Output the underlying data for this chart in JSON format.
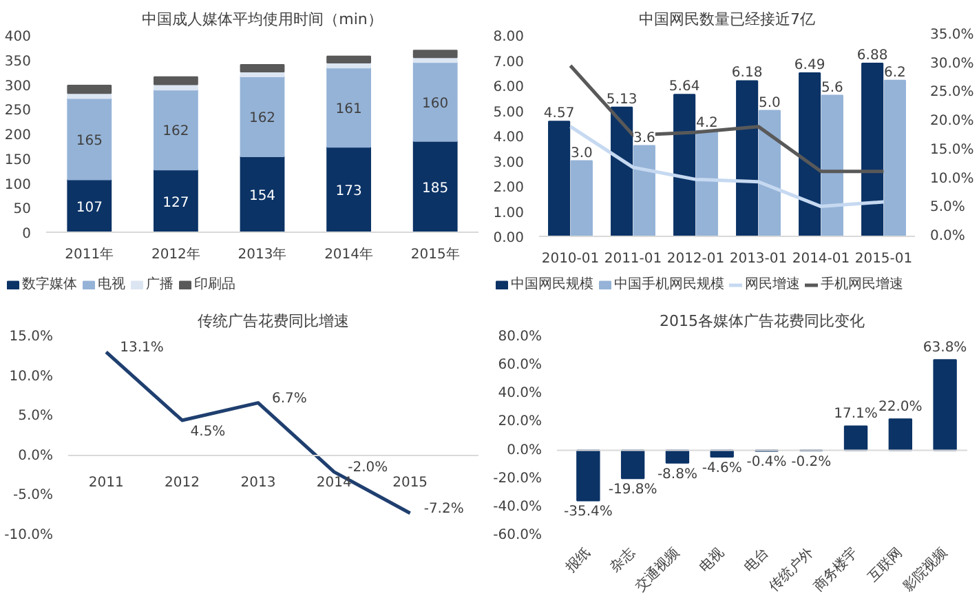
{
  "chart_data": [
    {
      "type": "bar",
      "title": "中国成人媒体平均使用时间（min）",
      "stacked": true,
      "categories": [
        "2011年",
        "2012年",
        "2013年",
        "2014年",
        "2015年"
      ],
      "series": [
        {
          "name": "数字媒体",
          "color": "#0b3366",
          "values": [
            107,
            127,
            154,
            173,
            185
          ],
          "value_labels": [
            "107",
            "127",
            "154",
            "173",
            "185"
          ]
        },
        {
          "name": "电视",
          "color": "#95b3d7",
          "values": [
            165,
            162,
            162,
            161,
            160
          ],
          "value_labels": [
            "165",
            "162",
            "162",
            "161",
            "160"
          ]
        },
        {
          "name": "广播",
          "color": "#dce6f2",
          "values": [
            10,
            11,
            10,
            10,
            10
          ]
        },
        {
          "name": "印刷品",
          "color": "#595959",
          "values": [
            16,
            15,
            14,
            13,
            14
          ]
        }
      ],
      "ylim": [
        0,
        400
      ],
      "yticks": [
        0,
        50,
        100,
        150,
        200,
        250,
        300,
        350,
        400
      ],
      "legend": "bottom"
    },
    {
      "type": "bar",
      "title": "中国网民数量已经接近7亿",
      "categories": [
        "2010-01",
        "2011-01",
        "2012-01",
        "2013-01",
        "2014-01",
        "2015-01"
      ],
      "series": [
        {
          "name": "中国网民规模",
          "color": "#0b3366",
          "values": [
            4.57,
            5.13,
            5.64,
            6.18,
            6.49,
            6.88
          ],
          "value_labels": [
            "4.57",
            "5.13",
            "5.64",
            "6.18",
            "6.49",
            "6.88"
          ]
        },
        {
          "name": "中国手机网民规模",
          "color": "#95b3d7",
          "values": [
            3.0,
            3.6,
            4.2,
            5.0,
            5.6,
            6.2
          ],
          "value_labels": [
            "3.0",
            "3.6",
            "4.2",
            "5.0",
            "5.6",
            "6.2"
          ]
        },
        {
          "name": "网民增速",
          "type": "line",
          "axis": "y2",
          "color": "#c6d9f1",
          "values": [
            19.1,
            12.0,
            9.9,
            9.5,
            5.2,
            6.0
          ]
        },
        {
          "name": "手机网民增速",
          "type": "line",
          "axis": "y2",
          "color": "#595959",
          "values": [
            29.7,
            17.6,
            18.1,
            19.1,
            11.3,
            11.3
          ]
        }
      ],
      "ylim": [
        0,
        8
      ],
      "yticks": [
        {
          "value": 0,
          "label": "0.00"
        },
        {
          "value": 1,
          "label": "1.00"
        },
        {
          "value": 2,
          "label": "2.00"
        },
        {
          "value": 3,
          "label": "3.00"
        },
        {
          "value": 4,
          "label": "4.00"
        },
        {
          "value": 5,
          "label": "5.00"
        },
        {
          "value": 6,
          "label": "6.00"
        },
        {
          "value": 7,
          "label": "7.00"
        },
        {
          "value": 8,
          "label": "8.00"
        }
      ],
      "y2lim": [
        0,
        35
      ],
      "y2ticks": [
        {
          "value": 0,
          "label": "0.0%"
        },
        {
          "value": 5,
          "label": "5.0%"
        },
        {
          "value": 10,
          "label": "10.0%"
        },
        {
          "value": 15,
          "label": "15.0%"
        },
        {
          "value": 20,
          "label": "20.0%"
        },
        {
          "value": 25,
          "label": "25.0%"
        },
        {
          "value": 30,
          "label": "30.0%"
        },
        {
          "value": 35,
          "label": "35.0%"
        }
      ],
      "legend": "bottom"
    },
    {
      "type": "line",
      "title": "传统广告花费同比增速",
      "categories": [
        "2011",
        "2012",
        "2013",
        "2014",
        "2015"
      ],
      "series": [
        {
          "color": "#1f3f6f",
          "values": [
            13.1,
            4.5,
            6.7,
            -2.0,
            -7.2
          ],
          "value_labels": [
            "13.1%",
            "4.5%",
            "6.7%",
            "-2.0%",
            "-7.2%"
          ]
        }
      ],
      "ylim": [
        -10,
        15
      ],
      "yticks": [
        {
          "value": -10,
          "label": "-10.0%"
        },
        {
          "value": -5,
          "label": "-5.0%"
        },
        {
          "value": 0,
          "label": "0.0%"
        },
        {
          "value": 5,
          "label": "5.0%"
        },
        {
          "value": 10,
          "label": "10.0%"
        },
        {
          "value": 15,
          "label": "15.0%"
        }
      ]
    },
    {
      "type": "bar",
      "title": "2015各媒体广告花费同比变化",
      "categories": [
        "报纸",
        "杂志",
        "交通视频",
        "电视",
        "电台",
        "传统户外",
        "商务楼宇",
        "互联网",
        "影院视频"
      ],
      "series": [
        {
          "color": "#0b3366",
          "values": [
            -35.4,
            -19.8,
            -8.8,
            -4.6,
            -0.4,
            -0.2,
            17.1,
            22.0,
            63.8
          ],
          "value_labels": [
            "-35.4%",
            "-19.8%",
            "-8.8%",
            "-4.6%",
            "-0.4%",
            "-0.2%",
            "17.1%",
            "22.0%",
            "63.8%"
          ]
        }
      ],
      "ylim": [
        -60,
        80
      ],
      "yticks": [
        {
          "value": -60,
          "label": "-60.0%"
        },
        {
          "value": -40,
          "label": "-40.0%"
        },
        {
          "value": -20,
          "label": "-20.0%"
        },
        {
          "value": 0,
          "label": "0.0%"
        },
        {
          "value": 20,
          "label": "20.0%"
        },
        {
          "value": 40,
          "label": "40.0%"
        },
        {
          "value": 60,
          "label": "60.0%"
        },
        {
          "value": 80,
          "label": "80.0%"
        }
      ]
    }
  ]
}
